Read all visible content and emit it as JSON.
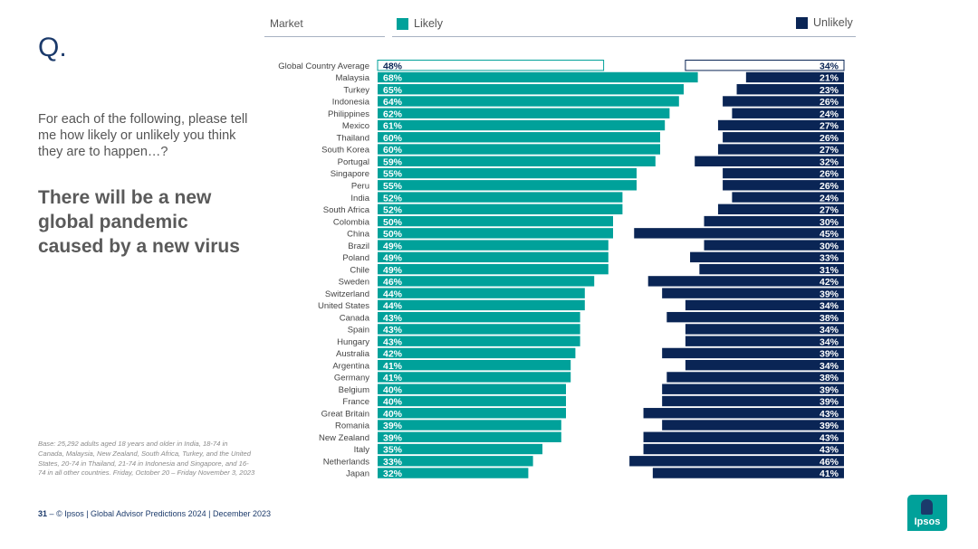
{
  "slide": {
    "q_mark": "Q.",
    "question": "For each of the following, please tell me how likely or unlikely you think they are to happen…?",
    "statement": "There will be a new global pandemic caused by a new virus",
    "base_note": "Base: 25,292 adults aged 18 years and older in India, 18-74 in Canada, Malaysia, New Zealand, South Africa, Turkey, and the United States, 20-74 in Thailand, 21-74 in Indonesia and Singapore, and 16-74 in all other countries. Friday, October 20 – Friday November 3, 2023",
    "footer": {
      "page_number": "31",
      "dash": "–",
      "text": "© Ipsos | Global Advisor Predictions 2024 | December 2023"
    },
    "logo_text": "Ipsos"
  },
  "colors": {
    "likely": "#00a19a",
    "unlikely": "#0a2555"
  },
  "chart_data": {
    "type": "bar",
    "orientation": "horizontal-diverging",
    "header_category": "Market",
    "percent_suffix": "%",
    "categories": [
      "Global Country Average",
      "Malaysia",
      "Turkey",
      "Indonesia",
      "Philippines",
      "Mexico",
      "Thailand",
      "South Korea",
      "Portugal",
      "Singapore",
      "Peru",
      "India",
      "South Africa",
      "Colombia",
      "China",
      "Brazil",
      "Poland",
      "Chile",
      "Sweden",
      "Switzerland",
      "United States",
      "Canada",
      "Spain",
      "Hungary",
      "Australia",
      "Argentina",
      "Germany",
      "Belgium",
      "France",
      "Great Britain",
      "Romania",
      "New Zealand",
      "Italy",
      "Netherlands",
      "Japan"
    ],
    "series": [
      {
        "name": "Likely",
        "values": [
          48,
          68,
          65,
          64,
          62,
          61,
          60,
          60,
          59,
          55,
          55,
          52,
          52,
          50,
          50,
          49,
          49,
          49,
          46,
          44,
          44,
          43,
          43,
          43,
          42,
          41,
          41,
          40,
          40,
          40,
          39,
          39,
          35,
          33,
          32
        ]
      },
      {
        "name": "Unlikely",
        "values": [
          34,
          21,
          23,
          26,
          24,
          27,
          26,
          27,
          32,
          26,
          26,
          24,
          27,
          30,
          45,
          30,
          33,
          31,
          42,
          39,
          34,
          38,
          34,
          34,
          39,
          34,
          38,
          39,
          39,
          43,
          39,
          43,
          43,
          46,
          41
        ]
      }
    ],
    "highlight_category": "Global Country Average",
    "xlim": [
      0,
      100
    ]
  }
}
